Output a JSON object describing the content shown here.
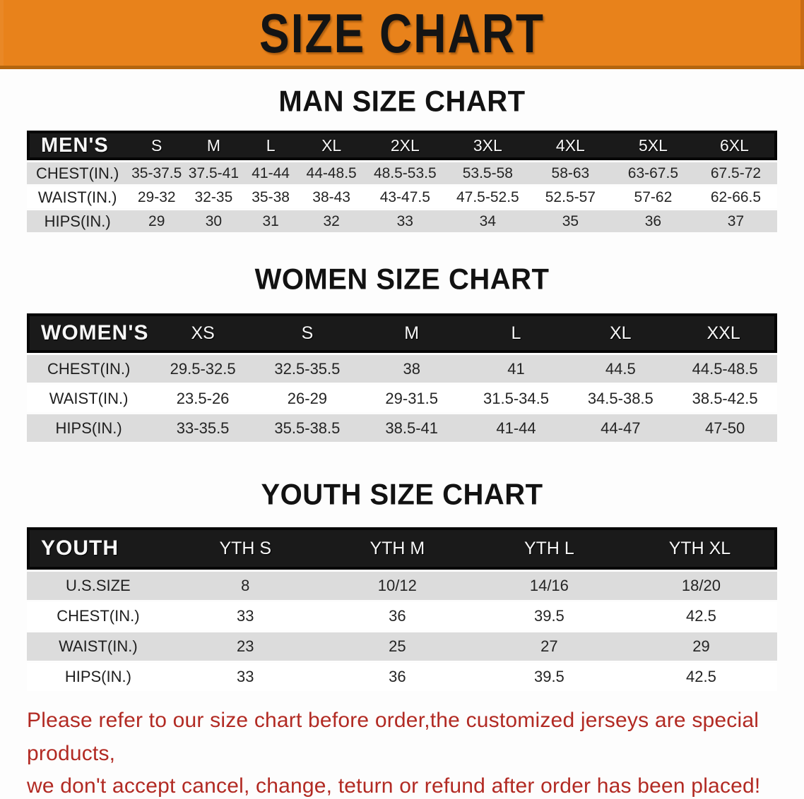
{
  "banner": {
    "title": "SIZE CHART"
  },
  "theme": {
    "banner_bg": "#E8821B",
    "banner_border": "#B4650E",
    "band_bg": "#1A1A1A",
    "row_stripe": "#DCDCDC",
    "heading_ink": "#121212",
    "note_red": "#B22A23"
  },
  "sections": [
    {
      "heading": "MAN SIZE CHART",
      "table": {
        "group_label": "MEN'S",
        "columns": [
          "S",
          "M",
          "L",
          "XL",
          "2XL",
          "3XL",
          "4XL",
          "5XL",
          "6XL"
        ],
        "rows": [
          {
            "label": "CHEST(IN.)",
            "values": [
              "35-37.5",
              "37.5-41",
              "41-44",
              "44-48.5",
              "48.5-53.5",
              "53.5-58",
              "58-63",
              "63-67.5",
              "67.5-72"
            ]
          },
          {
            "label": "WAIST(IN.)",
            "values": [
              "29-32",
              "32-35",
              "35-38",
              "38-43",
              "43-47.5",
              "47.5-52.5",
              "52.5-57",
              "57-62",
              "62-66.5"
            ]
          },
          {
            "label": "HIPS(IN.)",
            "values": [
              "29",
              "30",
              "31",
              "32",
              "33",
              "34",
              "35",
              "36",
              "37"
            ]
          }
        ]
      }
    },
    {
      "heading": "WOMEN SIZE CHART",
      "table": {
        "group_label": "WOMEN'S",
        "columns": [
          "XS",
          "S",
          "M",
          "L",
          "XL",
          "XXL"
        ],
        "rows": [
          {
            "label": "CHEST(IN.)",
            "values": [
              "29.5-32.5",
              "32.5-35.5",
              "38",
              "41",
              "44.5",
              "44.5-48.5"
            ]
          },
          {
            "label": "WAIST(IN.)",
            "values": [
              "23.5-26",
              "26-29",
              "29-31.5",
              "31.5-34.5",
              "34.5-38.5",
              "38.5-42.5"
            ]
          },
          {
            "label": "HIPS(IN.)",
            "values": [
              "33-35.5",
              "35.5-38.5",
              "38.5-41",
              "41-44",
              "44-47",
              "47-50"
            ]
          }
        ]
      }
    },
    {
      "heading": "YOUTH SIZE CHART",
      "table": {
        "group_label": "YOUTH",
        "columns": [
          "YTH S",
          "YTH M",
          "YTH L",
          "YTH XL"
        ],
        "rows": [
          {
            "label": "U.S.SIZE",
            "values": [
              "8",
              "10/12",
              "14/16",
              "18/20"
            ]
          },
          {
            "label": "CHEST(IN.)",
            "values": [
              "33",
              "36",
              "39.5",
              "42.5"
            ]
          },
          {
            "label": "WAIST(IN.)",
            "values": [
              "23",
              "25",
              "27",
              "29"
            ]
          },
          {
            "label": "HIPS(IN.)",
            "values": [
              "33",
              "36",
              "39.5",
              "42.5"
            ]
          }
        ]
      }
    }
  ],
  "footer_note": {
    "line1": "Please refer to our size chart before order,the customized jerseys are special products,",
    "line2": "we don't accept cancel, change, teturn or refund after order has been placed!"
  }
}
